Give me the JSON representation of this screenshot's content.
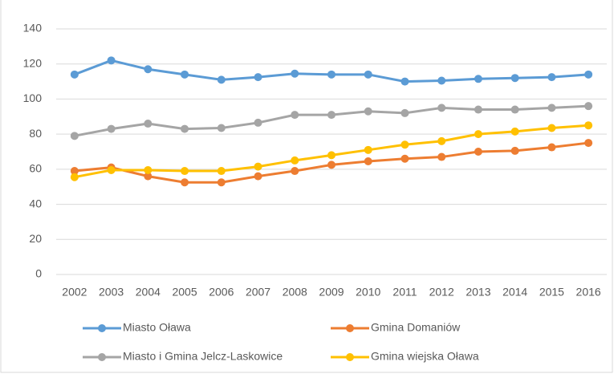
{
  "chart_data": {
    "type": "line",
    "categories": [
      "2002",
      "2003",
      "2004",
      "2005",
      "2006",
      "2007",
      "2008",
      "2009",
      "2010",
      "2011",
      "2012",
      "2013",
      "2014",
      "2015",
      "2016"
    ],
    "series": [
      {
        "name": "Miasto Oława",
        "color": "#5b9bd5",
        "values": [
          114,
          122,
          117,
          114,
          111,
          112.5,
          114.5,
          114,
          114,
          110,
          110.5,
          111.5,
          112,
          112.5,
          114
        ]
      },
      {
        "name": "Gmina Domaniów",
        "color": "#ed7d31",
        "values": [
          59,
          61,
          56,
          52.5,
          52.5,
          56,
          59,
          62.5,
          64.5,
          66,
          67,
          70,
          70.5,
          72.5,
          75
        ]
      },
      {
        "name": "Miasto i Gmina Jelcz-Laskowice",
        "color": "#a5a5a5",
        "values": [
          79,
          83,
          86,
          83,
          83.5,
          86.5,
          91,
          91,
          93,
          92,
          95,
          94,
          94,
          95,
          96
        ]
      },
      {
        "name": "Gmina wiejska Oława",
        "color": "#ffc000",
        "values": [
          55.5,
          59.5,
          59.5,
          59,
          59,
          61.5,
          65,
          68,
          71,
          74,
          76,
          80,
          81.5,
          83.5,
          85
        ]
      }
    ],
    "ylim": [
      0,
      140
    ],
    "yticks": [
      0,
      20,
      40,
      60,
      80,
      100,
      120,
      140
    ],
    "grid": true,
    "legend": "bottom"
  }
}
